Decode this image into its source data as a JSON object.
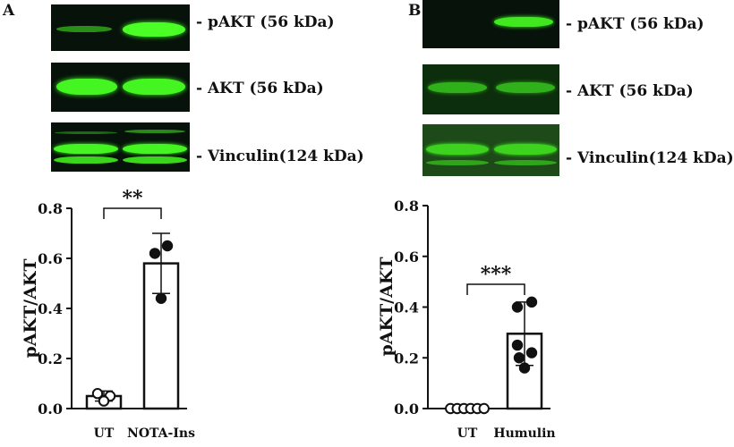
{
  "panels": [
    {
      "letter": "A",
      "blot_labels": [
        "- pAKT (56 kDa)",
        "- AKT (56 kDa)",
        "- Vinculin(124 kDa)"
      ],
      "chart_data": {
        "type": "bar",
        "categories": [
          "UT",
          "NOTA-Ins"
        ],
        "values": [
          0.05,
          0.58
        ],
        "errors": [
          0.02,
          0.12
        ],
        "points": [
          [
            0.06,
            0.05,
            0.03
          ],
          [
            0.62,
            0.65,
            0.44
          ]
        ],
        "point_fill": [
          "#ffffff",
          "#111111"
        ],
        "ylabel": "pAKT/AKT",
        "ylim": [
          0,
          0.8
        ],
        "yticks": [
          0.0,
          0.2,
          0.4,
          0.6,
          0.8
        ],
        "tick_labels": [
          "0.0",
          "0.2",
          "0.4",
          "0.6",
          "0.8"
        ],
        "significance": "**"
      }
    },
    {
      "letter": "B",
      "blot_labels": [
        "- pAKT (56 kDa)",
        "- AKT (56 kDa)",
        "- Vinculin(124 kDa)"
      ],
      "chart_data": {
        "type": "bar",
        "categories": [
          "UT",
          "Humulin"
        ],
        "values": [
          0.0,
          0.295
        ],
        "errors": [
          0.0,
          0.125
        ],
        "points": [
          [
            0,
            0,
            0,
            0,
            0,
            0
          ],
          [
            0.4,
            0.42,
            0.25,
            0.22,
            0.2,
            0.16
          ]
        ],
        "point_fill": [
          "#ffffff",
          "#111111"
        ],
        "ylabel": "pAKT/AKT",
        "ylim": [
          0,
          0.8
        ],
        "yticks": [
          0.0,
          0.2,
          0.4,
          0.6,
          0.8
        ],
        "tick_labels": [
          "0.0",
          "0.2",
          "0.4",
          "0.6",
          "0.8"
        ],
        "significance": "***"
      }
    }
  ],
  "colors": {
    "band": "#3dff1e",
    "bar": "#ffffff",
    "ink": "#111111",
    "blot_bg": "#07120a"
  }
}
